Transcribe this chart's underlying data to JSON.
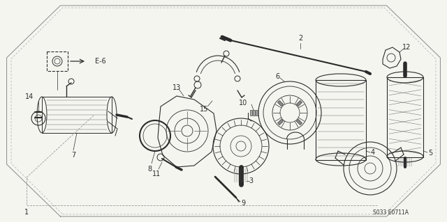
{
  "bg_color": "#f5f5f0",
  "line_color": "#2a2a2a",
  "light_line": "#555555",
  "footer_code": "S033 E0711A",
  "label_E6": "E-6",
  "border_points": [
    [
      0.135,
      0.975
    ],
    [
      0.865,
      0.975
    ],
    [
      0.985,
      0.74
    ],
    [
      0.985,
      0.26
    ],
    [
      0.865,
      0.025
    ],
    [
      0.135,
      0.025
    ],
    [
      0.015,
      0.26
    ],
    [
      0.015,
      0.74
    ]
  ],
  "dashed_border_points": [
    [
      0.14,
      0.965
    ],
    [
      0.86,
      0.965
    ],
    [
      0.975,
      0.735
    ],
    [
      0.975,
      0.265
    ],
    [
      0.86,
      0.035
    ],
    [
      0.14,
      0.035
    ],
    [
      0.025,
      0.265
    ],
    [
      0.025,
      0.735
    ]
  ]
}
